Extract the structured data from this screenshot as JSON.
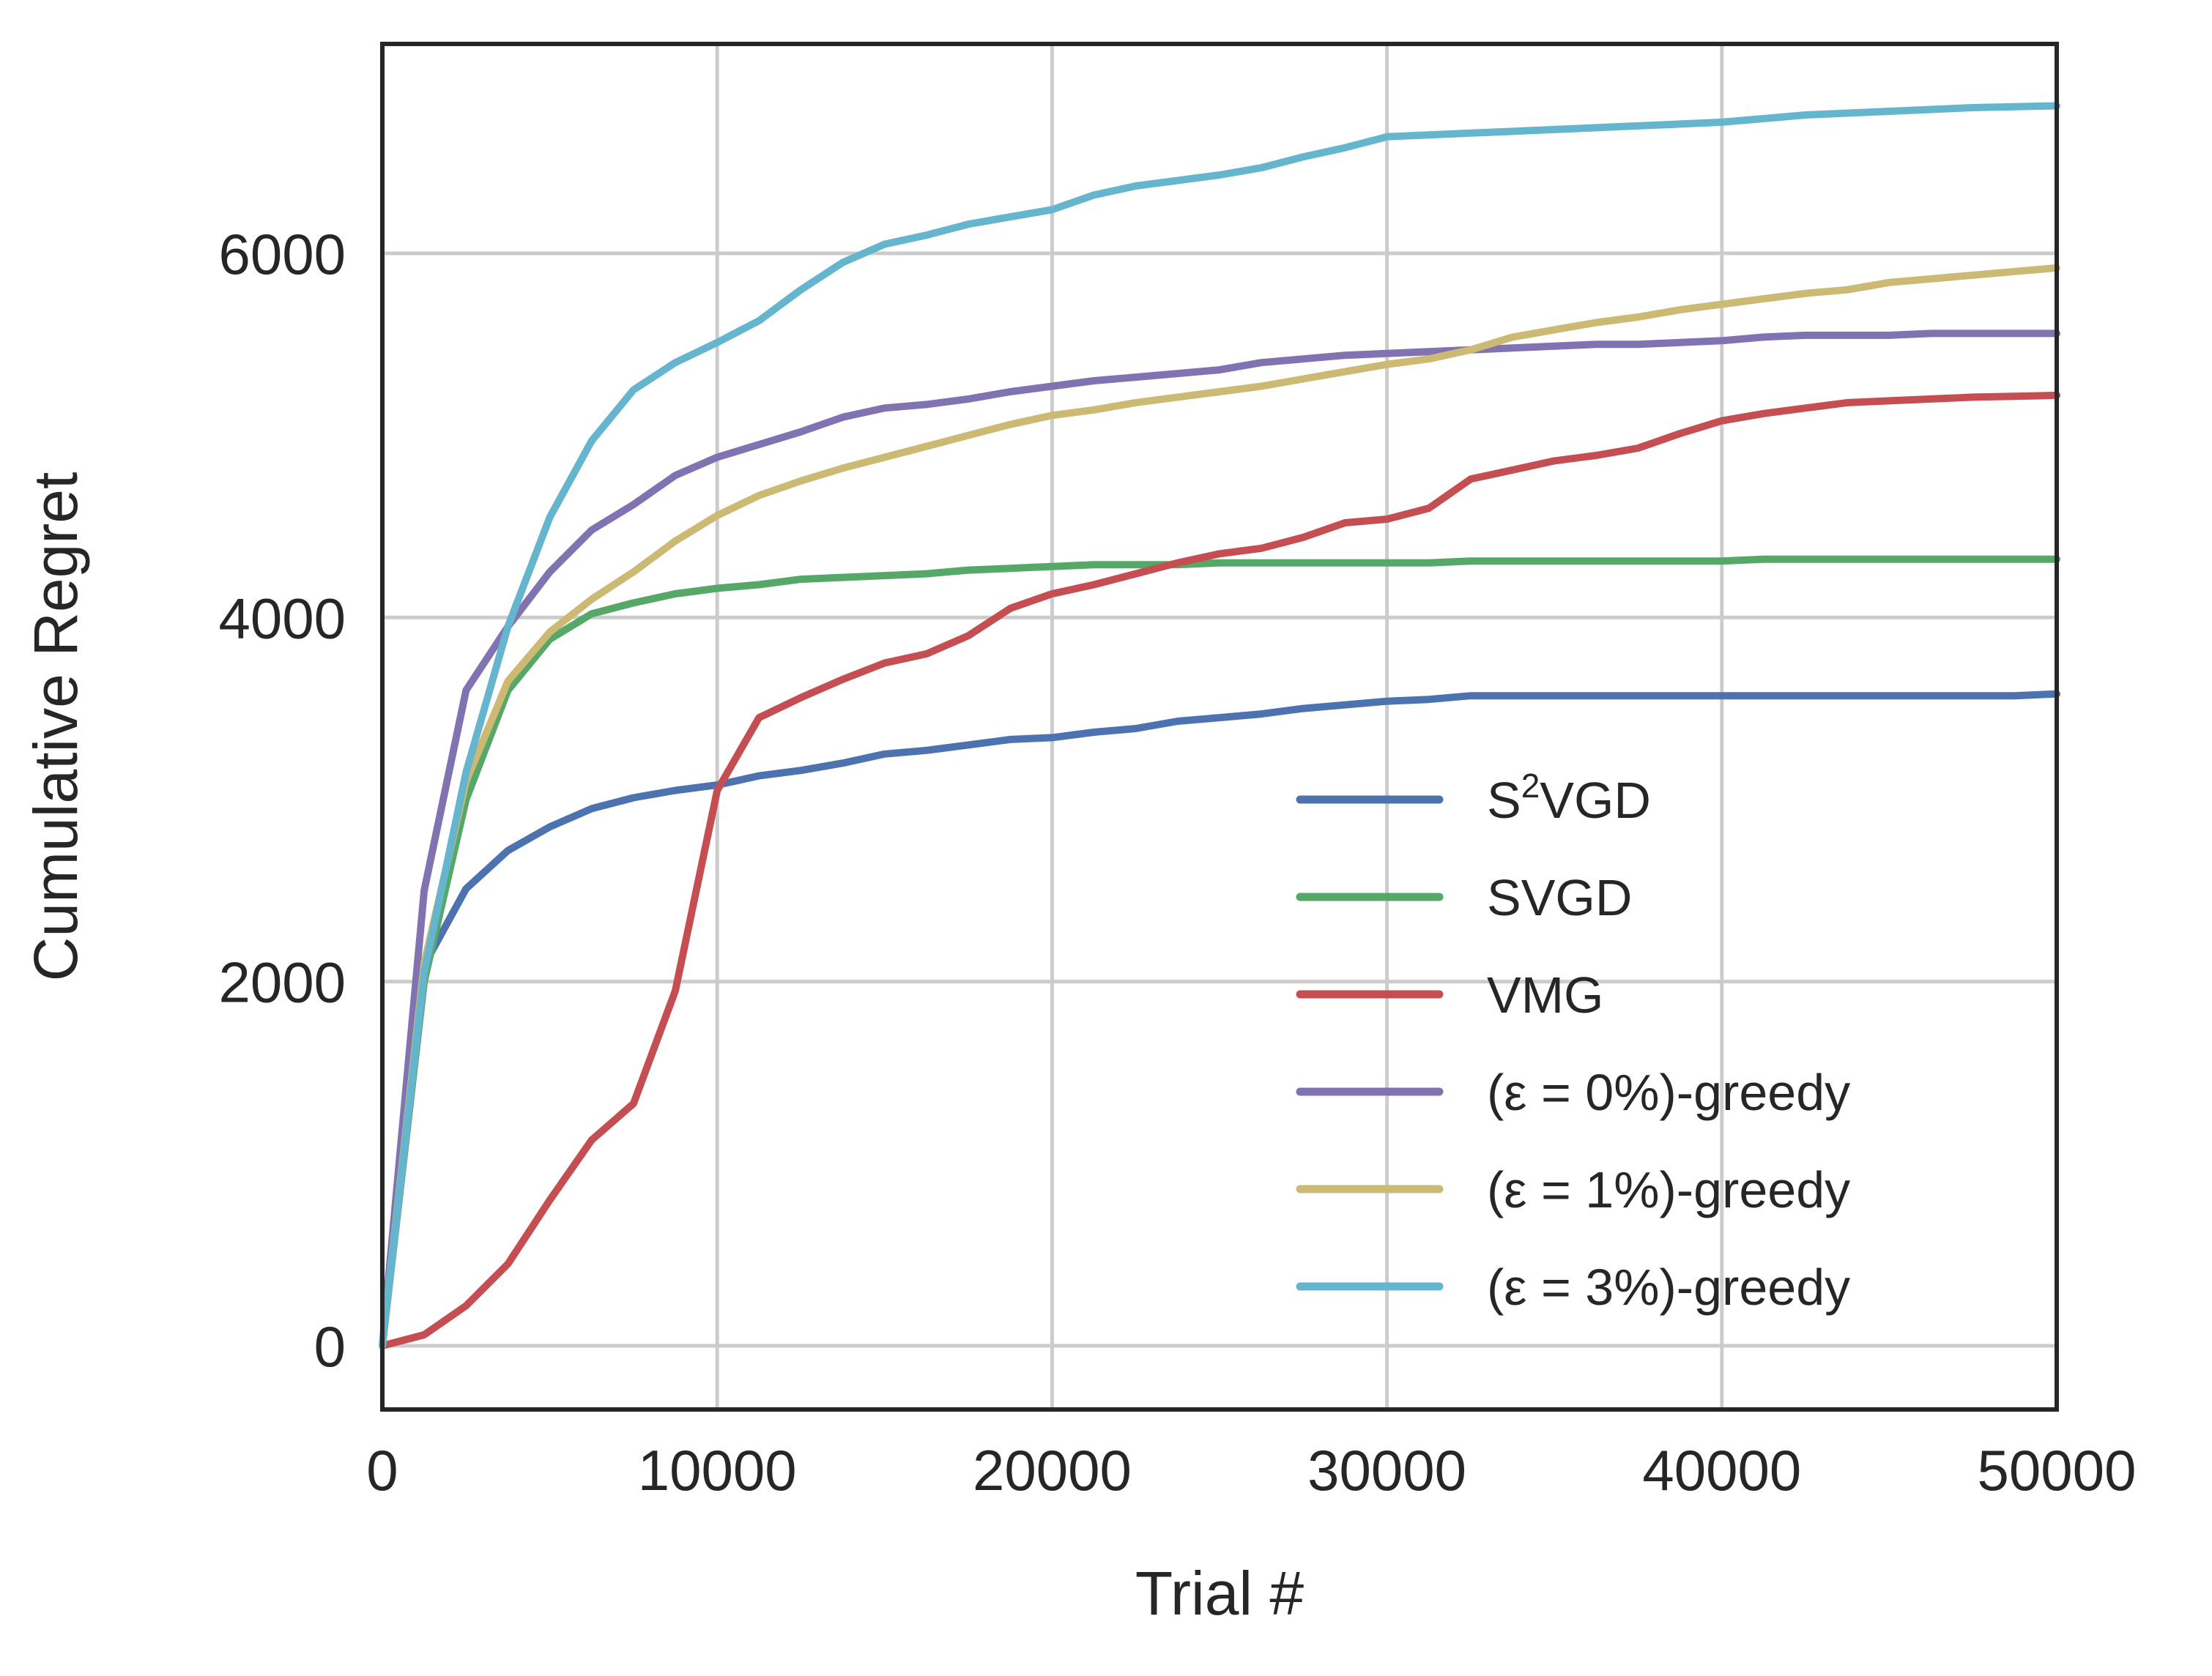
{
  "chart_data": {
    "type": "line",
    "title": "",
    "xlabel": "Trial #",
    "ylabel": "Cumulative Regret",
    "xlim": [
      0,
      50000
    ],
    "ylim": [
      -350,
      7150
    ],
    "xticks": [
      0,
      10000,
      20000,
      30000,
      40000,
      50000
    ],
    "xtick_labels": [
      "0",
      "10000",
      "20000",
      "30000",
      "40000",
      "50000"
    ],
    "yticks": [
      0,
      2000,
      4000,
      6000
    ],
    "ytick_labels": [
      "0",
      "2000",
      "4000",
      "6000"
    ],
    "grid": true,
    "legend_position": "lower-right",
    "x": [
      0,
      1250,
      2500,
      3750,
      5000,
      6250,
      7500,
      8750,
      10000,
      11250,
      12500,
      13750,
      15000,
      16250,
      17500,
      18750,
      20000,
      21250,
      22500,
      23750,
      25000,
      26250,
      27500,
      28750,
      30000,
      31250,
      32500,
      33750,
      35000,
      36250,
      37500,
      38750,
      40000,
      41250,
      42500,
      43750,
      45000,
      46250,
      47500,
      48750,
      50000
    ],
    "series": [
      {
        "name": "S²VGD",
        "label_main": "S",
        "label_sup": "2",
        "label_tail": "VGD",
        "color": "#4C72B0",
        "values": [
          0,
          2090,
          2510,
          2720,
          2850,
          2950,
          3010,
          3050,
          3080,
          3130,
          3160,
          3200,
          3250,
          3270,
          3300,
          3330,
          3340,
          3370,
          3390,
          3430,
          3450,
          3470,
          3500,
          3520,
          3540,
          3550,
          3570,
          3570,
          3570,
          3570,
          3570,
          3570,
          3570,
          3570,
          3570,
          3570,
          3570,
          3570,
          3570,
          3570,
          3580
        ]
      },
      {
        "name": "SVGD",
        "color": "#55A868",
        "values": [
          0,
          2000,
          3000,
          3600,
          3880,
          4020,
          4080,
          4130,
          4160,
          4180,
          4210,
          4220,
          4230,
          4240,
          4260,
          4270,
          4280,
          4290,
          4290,
          4290,
          4300,
          4300,
          4300,
          4300,
          4300,
          4300,
          4310,
          4310,
          4310,
          4310,
          4310,
          4310,
          4310,
          4320,
          4320,
          4320,
          4320,
          4320,
          4320,
          4320,
          4320
        ]
      },
      {
        "name": "VMG",
        "color": "#C44E52",
        "values": [
          0,
          60,
          220,
          450,
          800,
          1130,
          1330,
          1950,
          3050,
          3450,
          3560,
          3660,
          3750,
          3800,
          3900,
          4050,
          4130,
          4180,
          4240,
          4300,
          4350,
          4380,
          4440,
          4520,
          4540,
          4600,
          4760,
          4810,
          4860,
          4890,
          4930,
          5010,
          5080,
          5120,
          5150,
          5180,
          5190,
          5200,
          5210,
          5215,
          5220
        ]
      },
      {
        "name": "(ε = 0%)-greedy",
        "color": "#8172B2",
        "values": [
          0,
          2500,
          3600,
          3950,
          4250,
          4480,
          4620,
          4780,
          4880,
          4950,
          5020,
          5100,
          5150,
          5170,
          5200,
          5240,
          5270,
          5300,
          5320,
          5340,
          5360,
          5400,
          5420,
          5440,
          5450,
          5460,
          5470,
          5480,
          5490,
          5500,
          5500,
          5510,
          5520,
          5540,
          5550,
          5550,
          5550,
          5560,
          5560,
          5560,
          5560
        ]
      },
      {
        "name": "(ε = 1%)-greedy",
        "color": "#CCB974",
        "values": [
          0,
          2100,
          3100,
          3650,
          3920,
          4100,
          4250,
          4420,
          4560,
          4670,
          4750,
          4820,
          4880,
          4940,
          5000,
          5060,
          5110,
          5140,
          5180,
          5210,
          5240,
          5270,
          5310,
          5350,
          5390,
          5420,
          5470,
          5540,
          5580,
          5620,
          5650,
          5690,
          5720,
          5750,
          5780,
          5800,
          5840,
          5860,
          5880,
          5900,
          5920
        ]
      },
      {
        "name": "(ε = 3%)-greedy",
        "color": "#64B5CD",
        "values": [
          0,
          2050,
          3150,
          3950,
          4550,
          4970,
          5250,
          5400,
          5510,
          5630,
          5800,
          5950,
          6050,
          6100,
          6160,
          6200,
          6240,
          6320,
          6370,
          6400,
          6430,
          6470,
          6530,
          6580,
          6640,
          6650,
          6660,
          6670,
          6680,
          6690,
          6700,
          6710,
          6720,
          6740,
          6760,
          6770,
          6780,
          6790,
          6800,
          6805,
          6810
        ]
      }
    ]
  }
}
